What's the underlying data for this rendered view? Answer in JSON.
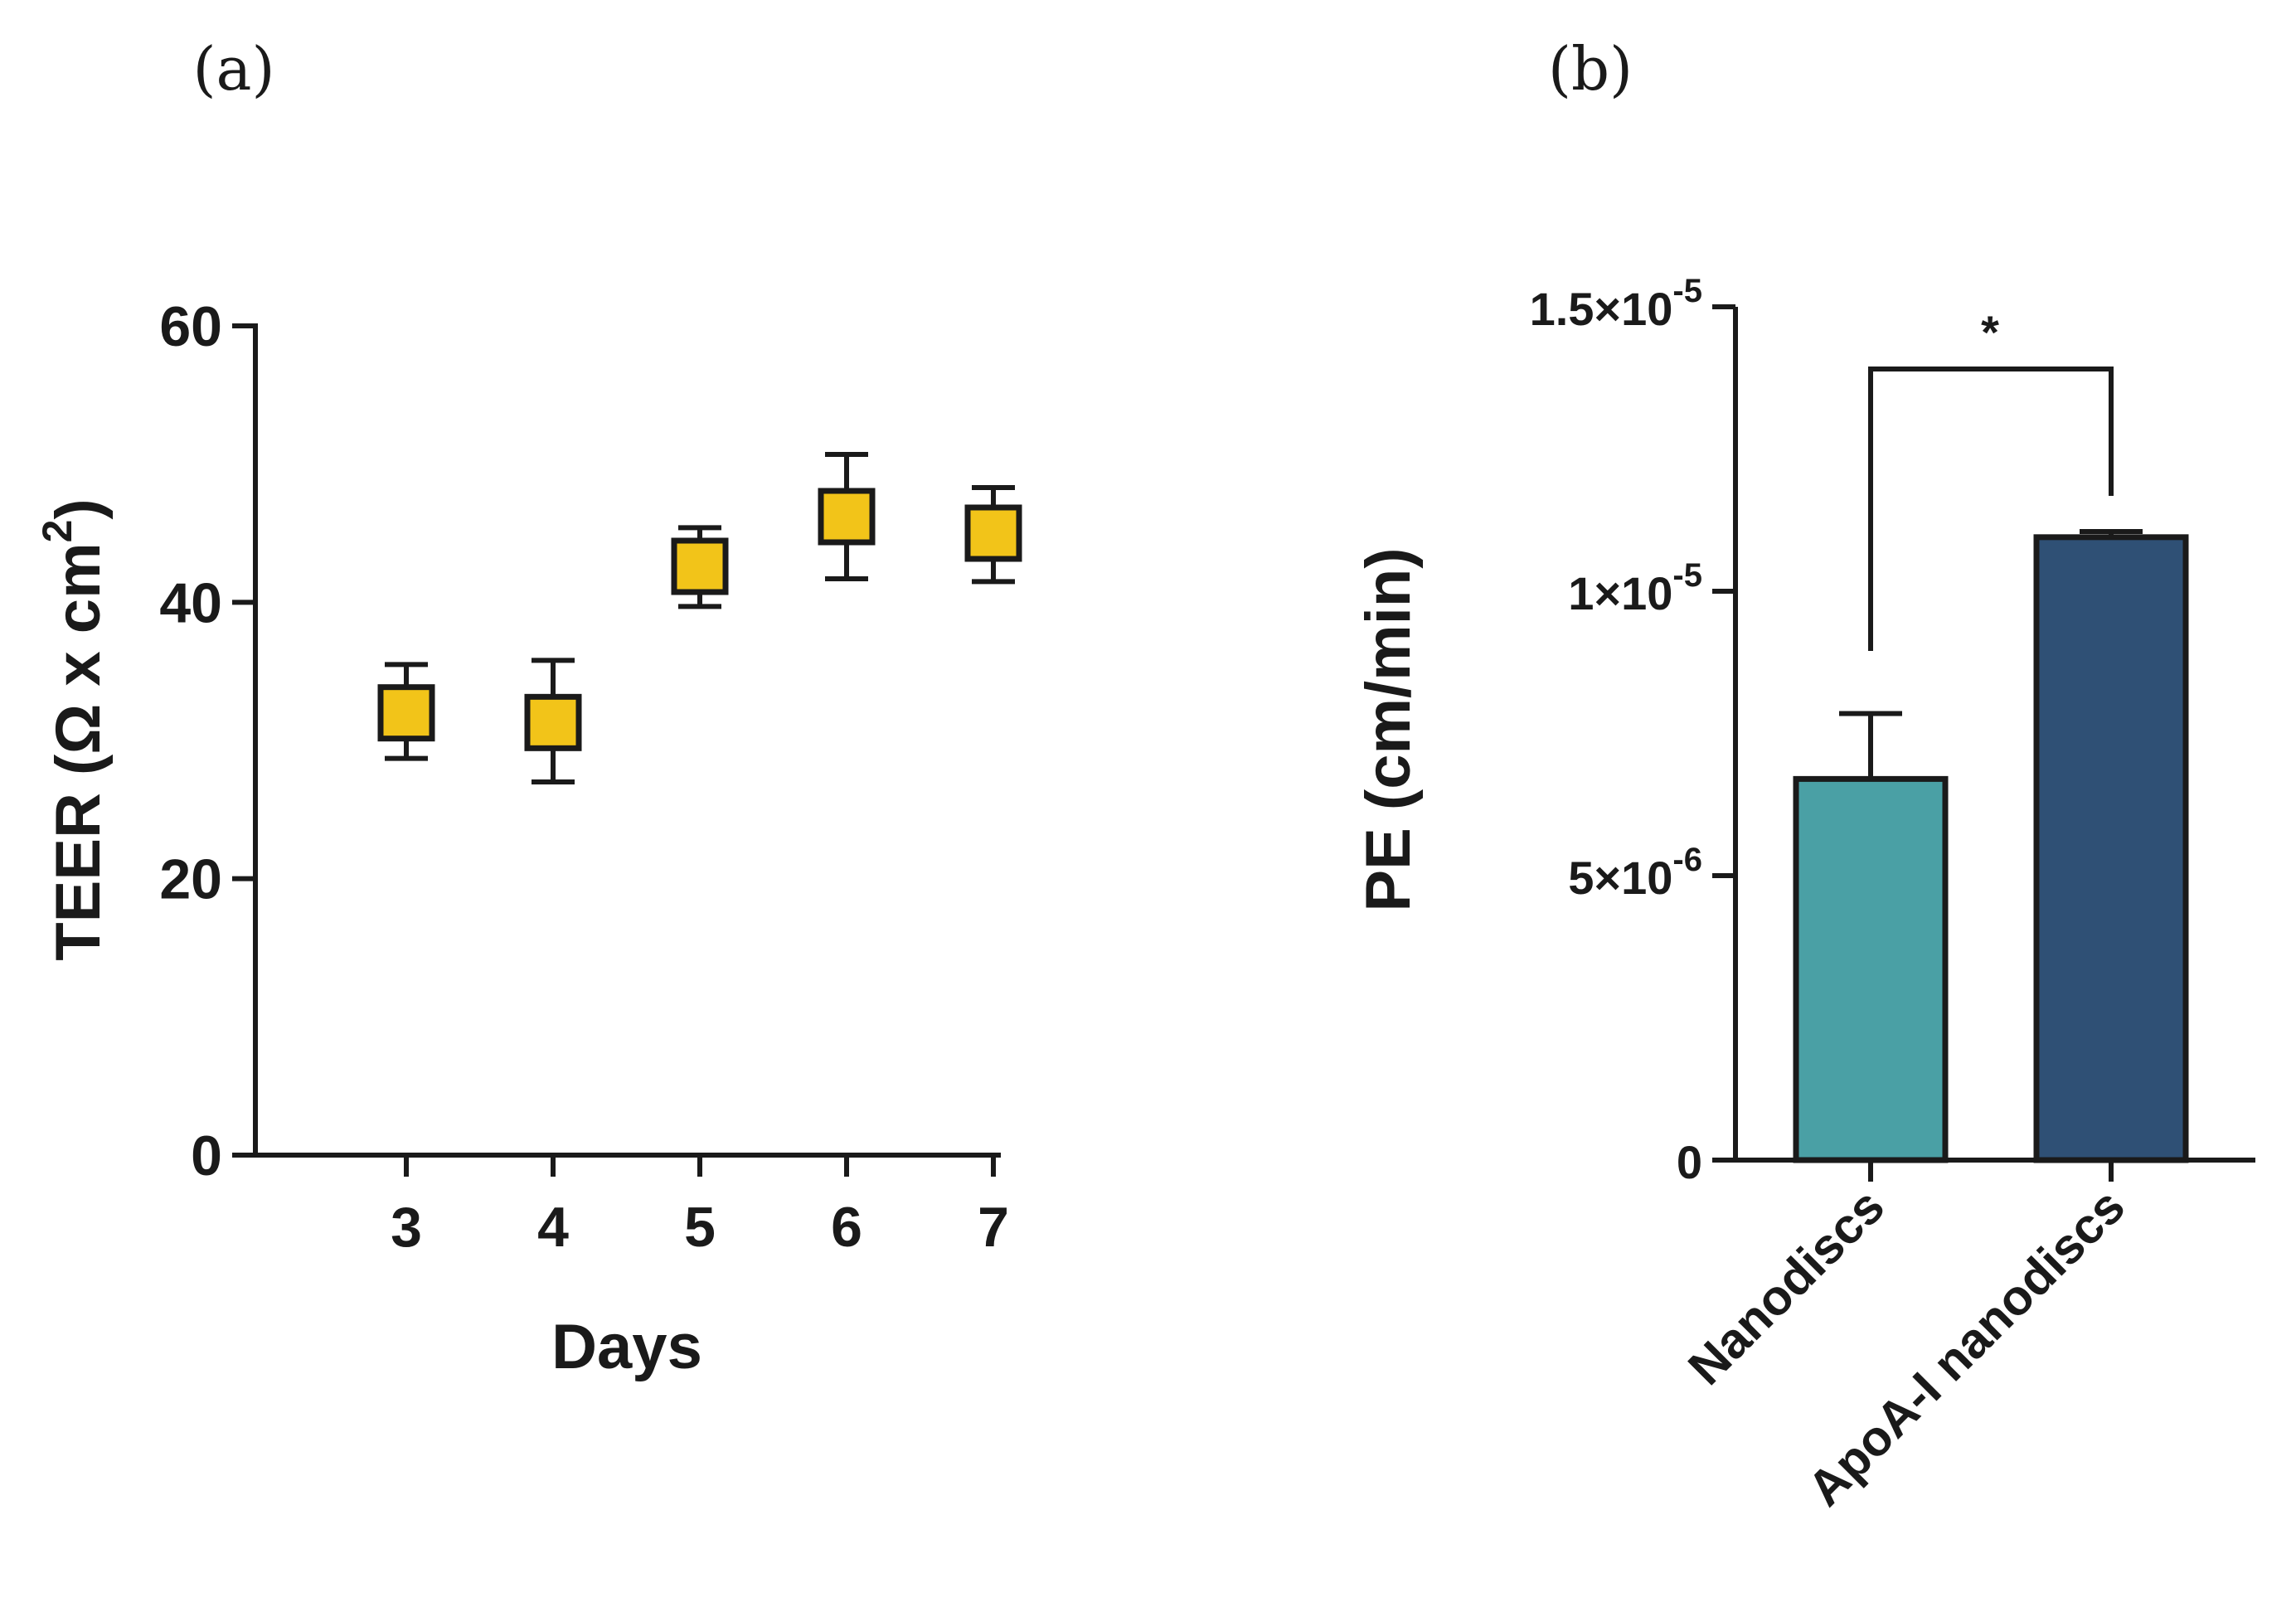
{
  "chart_data": [
    {
      "panel": "(a)",
      "type": "scatter",
      "xlabel": "Days",
      "ylabel_pre": "TEER (Ω x cm",
      "ylabel_sup": "2",
      "ylabel_post": ")",
      "ylim": [
        0,
        60
      ],
      "yticks": [
        0,
        20,
        40,
        60
      ],
      "x_categories": [
        "3",
        "4",
        "5",
        "6",
        "7"
      ],
      "points": [
        {
          "x": "3",
          "y": 32.0,
          "err_low": 28.7,
          "err_high": 35.5
        },
        {
          "x": "4",
          "y": 31.3,
          "err_low": 27.0,
          "err_high": 35.8
        },
        {
          "x": "5",
          "y": 42.6,
          "err_low": 39.7,
          "err_high": 45.4
        },
        {
          "x": "6",
          "y": 46.2,
          "err_low": 41.7,
          "err_high": 50.7
        },
        {
          "x": "7",
          "y": 45.0,
          "err_low": 41.5,
          "err_high": 48.3
        }
      ],
      "marker": "square",
      "marker_color": "#f2c419",
      "grid": false
    },
    {
      "panel": "(b)",
      "type": "bar",
      "ylabel": "PE (cm/min)",
      "ylim": [
        0,
        1.5e-05
      ],
      "yticks": [
        {
          "value": 0,
          "mantissa": "0",
          "exp": ""
        },
        {
          "value": 5e-06,
          "mantissa": "5×10",
          "exp": "-6"
        },
        {
          "value": 1e-05,
          "mantissa": "1×10",
          "exp": "-5"
        },
        {
          "value": 1.5e-05,
          "mantissa": "1.5×10",
          "exp": "-5"
        }
      ],
      "categories": [
        "Nanodiscs",
        "ApoA-I nanodiscs"
      ],
      "values": [
        6.7e-06,
        1.095e-05
      ],
      "errors": [
        1.15e-06,
        1e-07
      ],
      "colors": [
        "#4aa0a5",
        "#2f5075"
      ],
      "significance": "*",
      "grid": false
    }
  ]
}
